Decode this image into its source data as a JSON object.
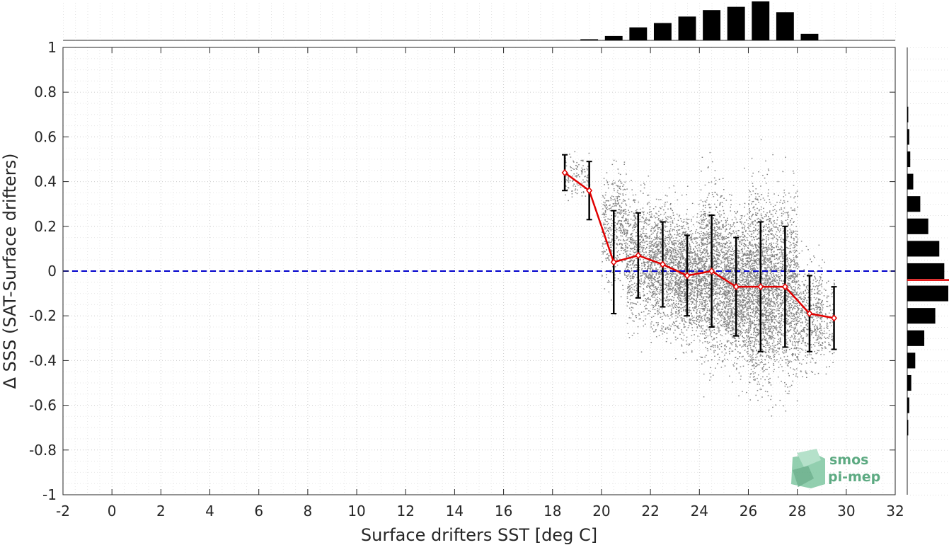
{
  "chart_data": {
    "type": "scatter",
    "xlabel": "Surface drifters SST [deg C]",
    "ylabel": "Δ SSS (SAT-Surface drifters)",
    "xlim": [
      -2,
      32
    ],
    "ylim": [
      -1,
      1
    ],
    "x_ticks": [
      "-2",
      "0",
      "2",
      "4",
      "6",
      "8",
      "10",
      "12",
      "14",
      "16",
      "18",
      "20",
      "22",
      "24",
      "26",
      "28",
      "30",
      "32"
    ],
    "y_ticks": [
      "1",
      "0.8",
      "0.6",
      "0.4",
      "0.2",
      "0",
      "-0.2",
      "-0.4",
      "-0.6",
      "-0.8",
      "-1"
    ],
    "grid": true,
    "zero_line": {
      "y": 0,
      "color": "#0000cc",
      "style": "dashed"
    },
    "scatter_color": "#808080",
    "scatter_cloud": [
      {
        "x": 19,
        "y": 0.42,
        "sx": 0.5,
        "sy": 0.07,
        "n": 120
      },
      {
        "x": 20.5,
        "y": 0.2,
        "sx": 0.5,
        "sy": 0.18,
        "n": 450
      },
      {
        "x": 21.5,
        "y": 0.07,
        "sx": 0.5,
        "sy": 0.19,
        "n": 700
      },
      {
        "x": 22.5,
        "y": 0.03,
        "sx": 0.5,
        "sy": 0.19,
        "n": 900
      },
      {
        "x": 23.5,
        "y": -0.02,
        "sx": 0.5,
        "sy": 0.18,
        "n": 1100
      },
      {
        "x": 24.5,
        "y": 0.0,
        "sx": 0.5,
        "sy": 0.25,
        "n": 1200
      },
      {
        "x": 25.5,
        "y": -0.07,
        "sx": 0.5,
        "sy": 0.22,
        "n": 1300
      },
      {
        "x": 26.5,
        "y": -0.07,
        "sx": 0.5,
        "sy": 0.29,
        "n": 1500
      },
      {
        "x": 27.5,
        "y": -0.07,
        "sx": 0.5,
        "sy": 0.27,
        "n": 1100
      },
      {
        "x": 28.5,
        "y": -0.19,
        "sx": 0.5,
        "sy": 0.17,
        "n": 450
      },
      {
        "x": 29.2,
        "y": -0.21,
        "sx": 0.3,
        "sy": 0.14,
        "n": 120
      }
    ],
    "series": [
      {
        "color": "#e00000",
        "x": [
          18.5,
          19.5,
          20.5,
          21.5,
          22.5,
          23.5,
          24.5,
          25.5,
          26.5,
          27.5,
          28.5,
          29.5
        ],
        "y": [
          0.44,
          0.36,
          0.04,
          0.07,
          0.03,
          -0.02,
          0.0,
          -0.07,
          -0.07,
          -0.07,
          -0.19,
          -0.21
        ],
        "err": [
          0.08,
          0.13,
          0.23,
          0.19,
          0.19,
          0.18,
          0.25,
          0.22,
          0.29,
          0.27,
          0.17,
          0.14
        ]
      }
    ],
    "top_histogram": {
      "bins": [
        18.5,
        19.5,
        20.5,
        21.5,
        22.5,
        23.5,
        24.5,
        25.5,
        26.5,
        27.5,
        28.5,
        29.5
      ],
      "values": [
        0.2,
        1,
        4,
        12,
        16,
        22,
        28,
        31,
        36,
        26,
        6,
        0.3
      ]
    },
    "right_histogram": {
      "bins": [
        0.7,
        0.6,
        0.5,
        0.4,
        0.3,
        0.2,
        0.1,
        0.0,
        -0.1,
        -0.2,
        -0.3,
        -0.4,
        -0.5,
        -0.6,
        -0.7
      ],
      "values": [
        1,
        2,
        3,
        6,
        13,
        21,
        32,
        37,
        41,
        28,
        17,
        8,
        4,
        2,
        1
      ],
      "mean": -0.04,
      "mean_color": "#e00000"
    }
  },
  "logo": {
    "line1": "smos",
    "line2": "pi-mep",
    "color": "#5daa82"
  }
}
